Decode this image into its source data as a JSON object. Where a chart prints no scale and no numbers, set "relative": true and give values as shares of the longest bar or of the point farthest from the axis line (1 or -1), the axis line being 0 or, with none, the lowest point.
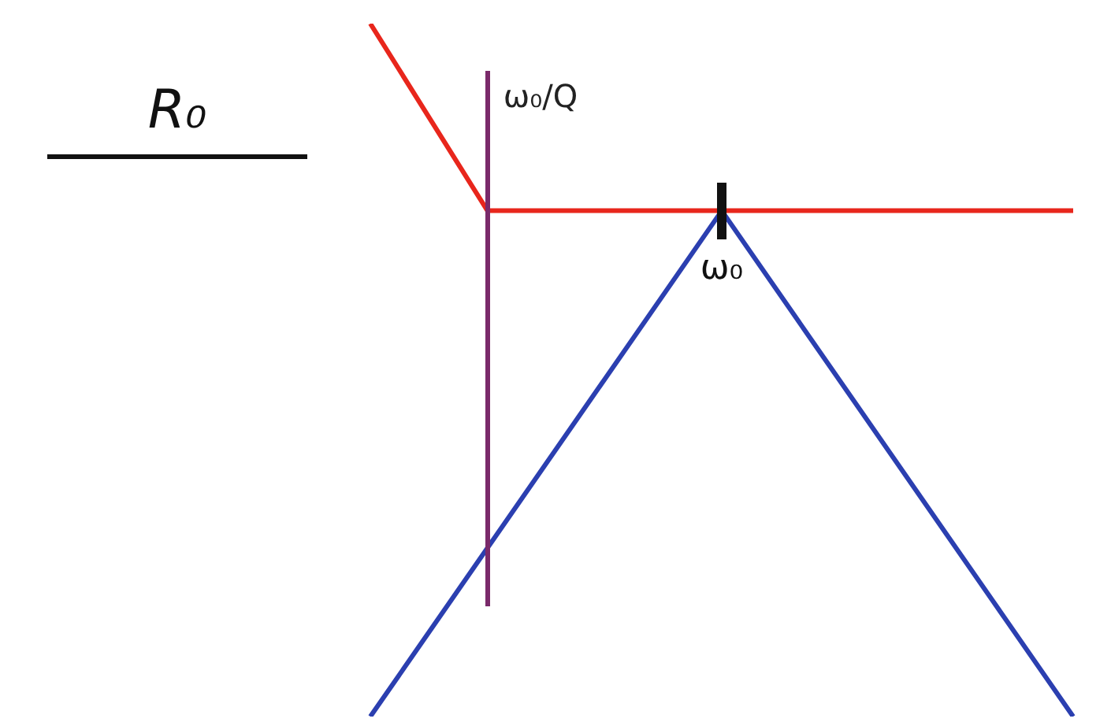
{
  "chart_data": {
    "type": "line",
    "relative": true,
    "title": "R₀",
    "ylabel": "ω₀/Q",
    "categories": [
      null,
      null,
      null,
      null,
      null,
      null,
      null
    ],
    "annotations": [
      {
        "text": "ω₀",
        "y": 0.73
      }
    ],
    "series": [
      {
        "color": "#e8261c",
        "values": [
          1,
          0.73,
          null,
          null,
          null,
          null,
          0.73
        ]
      },
      {
        "color": "#2b3fb0",
        "values": [
          0,
          null,
          null,
          0.73,
          null,
          null,
          0
        ]
      }
    ],
    "legend": false,
    "marker": "none",
    "line_style": "solid"
  }
}
